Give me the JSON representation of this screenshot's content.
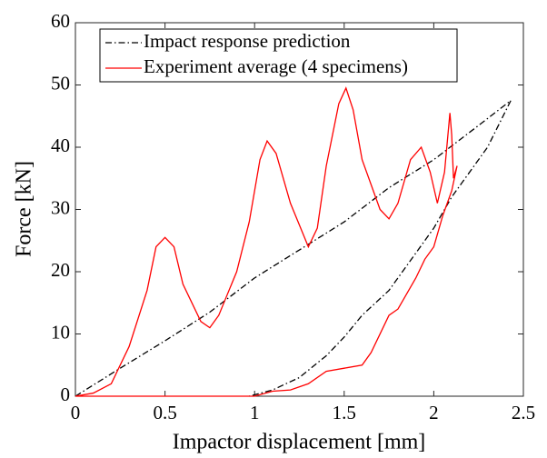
{
  "chart_data": {
    "type": "line",
    "xlabel": "Impactor displacement [mm]",
    "ylabel": "Force [kN]",
    "xlim": [
      0,
      2.5
    ],
    "xticks": [
      0,
      0.5,
      1,
      1.5,
      2,
      2.5
    ],
    "ylim": [
      0,
      60
    ],
    "yticks": [
      0,
      10,
      20,
      30,
      40,
      50,
      60
    ],
    "grid": false,
    "legend": "upper left",
    "series": [
      {
        "name": "Impact response prediction",
        "color": "#000000",
        "linestyle": "dashdot",
        "x": [
          0,
          0.25,
          0.5,
          0.75,
          1.0,
          1.25,
          1.5,
          1.75,
          2.0,
          2.25,
          2.43,
          2.3,
          2.1,
          2.0,
          1.9,
          1.75,
          1.6,
          1.5,
          1.4,
          1.25,
          1.1,
          0.97
        ],
        "values": [
          0,
          4.5,
          8.9,
          13.5,
          19,
          23.5,
          28,
          33.5,
          38,
          43.5,
          47.5,
          40,
          32,
          27,
          23,
          17,
          13,
          9.5,
          6.5,
          3,
          1,
          0
        ]
      },
      {
        "name": "Experiment average (4 specimens)",
        "color": "#ff0000",
        "linestyle": "solid",
        "x": [
          0,
          0.1,
          0.2,
          0.3,
          0.4,
          0.45,
          0.5,
          0.55,
          0.6,
          0.7,
          0.75,
          0.8,
          0.9,
          0.97,
          1.03,
          1.07,
          1.12,
          1.2,
          1.3,
          1.35,
          1.4,
          1.47,
          1.51,
          1.55,
          1.6,
          1.7,
          1.75,
          1.8,
          1.87,
          1.93,
          1.98,
          2.02,
          2.06,
          2.09,
          2.1,
          2.11,
          2.13,
          2.1,
          2.05,
          2.0,
          1.95,
          1.9,
          1.8,
          1.75,
          1.65,
          1.6,
          1.5,
          1.4,
          1.3,
          1.2,
          1.1,
          1.0,
          0.5,
          0
        ],
        "values": [
          0,
          0.5,
          2,
          8,
          17,
          24,
          25.5,
          24,
          18,
          12,
          11,
          13,
          20,
          28,
          38,
          41,
          39,
          31,
          24,
          27,
          37,
          47,
          49.5,
          46,
          38,
          30,
          28.5,
          31,
          38,
          40,
          36,
          31,
          36,
          45.5,
          42,
          35,
          37,
          33,
          29,
          24,
          22,
          19,
          14,
          13,
          7,
          5,
          4.5,
          4,
          2,
          1,
          0.8,
          0,
          0,
          0
        ]
      }
    ]
  }
}
